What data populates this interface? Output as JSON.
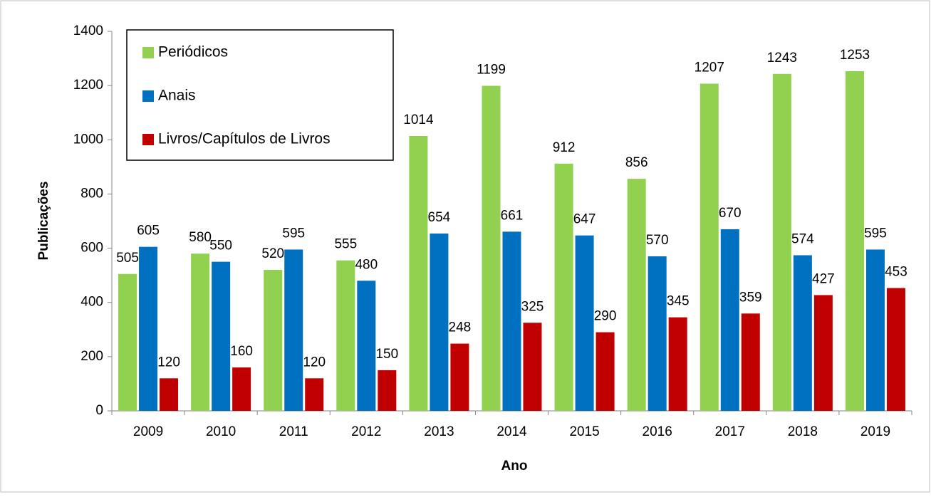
{
  "chart_data": {
    "type": "bar",
    "x_label": "Ano",
    "y_label": "Publicações",
    "categories": [
      "2009",
      "2010",
      "2011",
      "2012",
      "2013",
      "2014",
      "2015",
      "2016",
      "2017",
      "2018",
      "2019"
    ],
    "series": [
      {
        "name": "Periódicos",
        "color": "#92d050",
        "values": [
          505,
          580,
          520,
          555,
          1014,
          1199,
          912,
          856,
          1207,
          1243,
          1253
        ]
      },
      {
        "name": "Anais",
        "color": "#0070c0",
        "values": [
          605,
          550,
          595,
          480,
          654,
          661,
          647,
          570,
          670,
          574,
          595
        ]
      },
      {
        "name": "Livros/Capítulos de Livros",
        "color": "#c00000",
        "values": [
          120,
          160,
          120,
          150,
          248,
          325,
          290,
          345,
          359,
          427,
          453
        ]
      }
    ],
    "ylim": [
      0,
      1400
    ],
    "yticks": [
      0,
      200,
      400,
      600,
      800,
      1000,
      1200,
      1400
    ],
    "grid": false,
    "legend": "top-left"
  }
}
